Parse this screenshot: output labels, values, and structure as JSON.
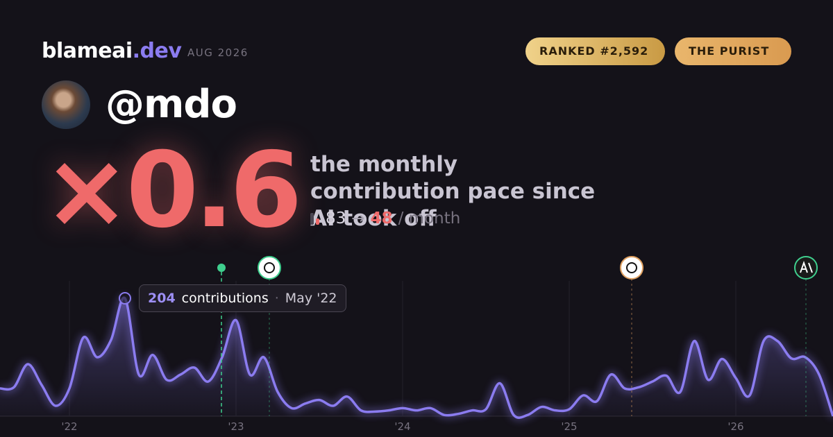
{
  "header": {
    "brand": "blameai",
    "brand_tld": ".dev",
    "period": "AUG 2026",
    "badges": [
      "RANKED #2,592",
      "THE PURIST"
    ]
  },
  "profile": {
    "handle": "@mdo"
  },
  "hero": {
    "multiplier": "×0.6",
    "caption": "the monthly contribution pace since AI took off",
    "before": "83",
    "arrow": "→",
    "after": "48",
    "unit": "/ month"
  },
  "tooltip": {
    "count": "204",
    "label": "contributions",
    "separator": "·",
    "date": "May '22"
  },
  "chart_data": {
    "type": "area",
    "categories": [
      null,
      null,
      null,
      null,
      null,
      "'22",
      null,
      null,
      null,
      null,
      null,
      null,
      null,
      null,
      null,
      null,
      null,
      "'23",
      null,
      null,
      null,
      null,
      null,
      null,
      null,
      null,
      null,
      null,
      null,
      "'24",
      null,
      null,
      null,
      null,
      null,
      null,
      null,
      null,
      null,
      null,
      null,
      "'25",
      null,
      null,
      null,
      null,
      null,
      null,
      null,
      null,
      null,
      null,
      null,
      "'26",
      null,
      null,
      null,
      null,
      null,
      null,
      null
    ],
    "series": [
      {
        "name": "contributions",
        "color": "#8b7cf0",
        "values": [
          48,
          50,
          90,
          54,
          18,
          48,
          136,
          102,
          132,
          204,
          72,
          106,
          63,
          72,
          84,
          60,
          102,
          166,
          72,
          102,
          42,
          14,
          22,
          28,
          18,
          34,
          10,
          8,
          10,
          14,
          10,
          14,
          2,
          4,
          10,
          12,
          57,
          2,
          2,
          16,
          10,
          12,
          36,
          26,
          72,
          48,
          50,
          60,
          70,
          42,
          130,
          63,
          99,
          66,
          36,
          130,
          130,
          100,
          102,
          72,
          0
        ]
      }
    ],
    "ylim": [
      0,
      240
    ]
  }
}
